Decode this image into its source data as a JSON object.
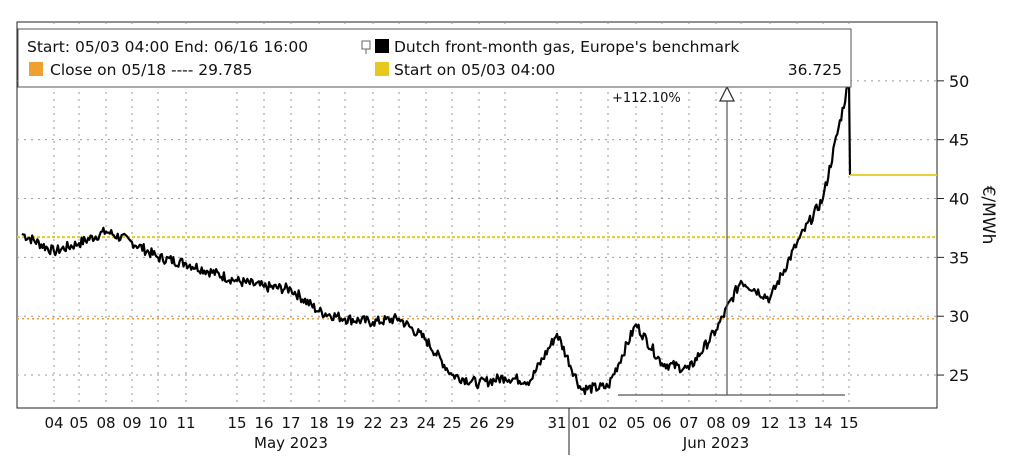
{
  "chart_data": {
    "type": "line",
    "legend": {
      "range_text": "Start: 05/03 04:00 End: 06/16 16:00",
      "series_name": "Dutch front-month gas, Europe's benchmark",
      "close_label": "Close on 05/18 ---- 29.785",
      "start_label": "Start on 05/03 04:00",
      "start_value": "36.725"
    },
    "annotation": "+112.10%",
    "ylabel": "€/MWh",
    "yticks": [
      25,
      30,
      35,
      40,
      45,
      50
    ],
    "ylim": [
      22.2,
      55
    ],
    "x_tick_labels": [
      "04",
      "05",
      "08",
      "09",
      "10",
      "11",
      "15",
      "16",
      "17",
      "18",
      "19",
      "22",
      "23",
      "24",
      "25",
      "26",
      "29",
      "31",
      "01",
      "02",
      "05",
      "06",
      "07",
      "08",
      "09",
      "12",
      "13",
      "14",
      "15"
    ],
    "x_groups": [
      "May 2023",
      "Jun 2023"
    ],
    "reference_lines": {
      "start_value": 36.725,
      "close_0518": 29.785
    },
    "series": [
      {
        "name": "Dutch front-month gas, Europe's benchmark",
        "x": [
          "05/03",
          "05/04",
          "05/05",
          "05/08",
          "05/09",
          "05/10",
          "05/11",
          "05/15",
          "05/16",
          "05/17",
          "05/18",
          "05/19",
          "05/22",
          "05/23",
          "05/24",
          "05/25",
          "05/26",
          "05/29",
          "05/30",
          "05/31",
          "06/01",
          "06/02",
          "06/05",
          "06/06",
          "06/07",
          "06/08",
          "06/09",
          "06/12",
          "06/13",
          "06/14",
          "06/15",
          "06/16"
        ],
        "values": [
          37.0,
          35.5,
          36.2,
          37.2,
          36.3,
          35.0,
          34.5,
          33.0,
          32.5,
          32.3,
          30.4,
          29.8,
          29.5,
          29.8,
          28.0,
          25.0,
          24.3,
          24.8,
          24.5,
          28.5,
          23.8,
          24.0,
          29.3,
          26.0,
          25.5,
          28.8,
          33.0,
          31.5,
          36.2,
          40.0,
          50.0,
          42.0
        ]
      }
    ],
    "grid": true,
    "colors": {
      "line": "#000000",
      "start_line": "#e8c81e",
      "close_line": "#f0a030",
      "grid": "#9a9a9a"
    }
  }
}
